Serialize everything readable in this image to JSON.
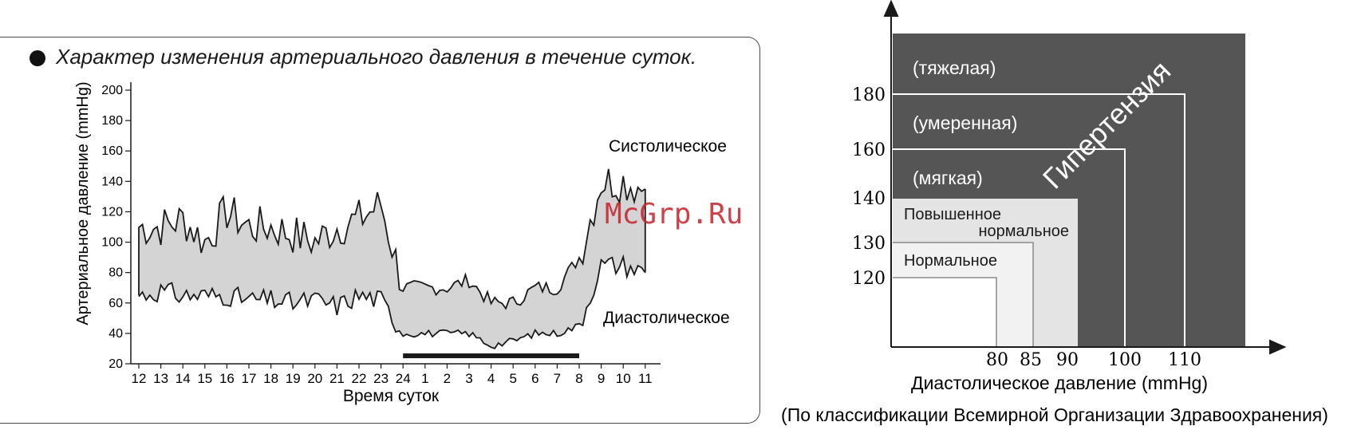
{
  "left_chart": {
    "title": "Характер изменения артериального давления в течение суток.",
    "ylabel": "Артериальное давление (mmHg)",
    "xlabel": "Время суток",
    "y_ticks": [
      20,
      40,
      60,
      80,
      100,
      120,
      140,
      160,
      180,
      200
    ],
    "x_ticks": [
      "12",
      "13",
      "14",
      "15",
      "16",
      "17",
      "18",
      "19",
      "20",
      "21",
      "22",
      "23",
      "24",
      "1",
      "2",
      "3",
      "4",
      "5",
      "6",
      "7",
      "8",
      "9",
      "10",
      "11"
    ],
    "label_systolic": "Систолическое",
    "label_diastolic": "Диастолическое",
    "watermark": "McGrp.Ru"
  },
  "right_chart": {
    "xlabel": "Диастолическое давление (mmHg)",
    "footnote": "(По классификации Всемирной Организации Здравоохранения)",
    "y_ticks": [
      "180",
      "160",
      "140",
      "130",
      "120"
    ],
    "x_ticks": [
      "80",
      "85",
      "90",
      "100",
      "110"
    ],
    "zones": {
      "severe": "(тяжелая)",
      "moderate": "(умеренная)",
      "mild": "(мягкая)",
      "high_normal_line1": "Повышенное",
      "high_normal_line2": "нормальное",
      "normal": "Нормальное",
      "hypertension": "Гипертензия"
    }
  },
  "chart_data": [
    {
      "type": "area",
      "title": "Характер изменения артериального давления в течение суток.",
      "xlabel": "Время суток",
      "ylabel": "Артериальное давление (mmHg)",
      "ylim": [
        20,
        200
      ],
      "categories": [
        "12",
        "13",
        "14",
        "15",
        "16",
        "17",
        "18",
        "19",
        "20",
        "21",
        "22",
        "23",
        "24",
        "1",
        "2",
        "3",
        "4",
        "5",
        "6",
        "7",
        "8",
        "9",
        "10",
        "11"
      ],
      "series": [
        {
          "name": "Систолическое",
          "values": [
            110,
            110,
            115,
            100,
            120,
            110,
            110,
            105,
            100,
            110,
            115,
            125,
            70,
            70,
            70,
            75,
            60,
            60,
            70,
            70,
            90,
            140,
            140,
            135
          ]
        },
        {
          "name": "Диастолическое",
          "values": [
            65,
            68,
            65,
            65,
            65,
            62,
            62,
            60,
            62,
            58,
            65,
            62,
            40,
            40,
            40,
            40,
            32,
            35,
            40,
            40,
            45,
            85,
            85,
            80
          ]
        }
      ],
      "colors": {
        "band": "#d4d4d4",
        "line": "#1a1a1a",
        "sleep_bar": "#1a1a1a"
      }
    },
    {
      "type": "table",
      "xlabel": "Диастолическое давление (mmHg)",
      "y_ticks": [
        120,
        130,
        140,
        160,
        180
      ],
      "x_ticks": [
        80,
        85,
        90,
        100,
        110
      ],
      "zones": [
        {
          "name": "Нормальное",
          "systolic_max": 130,
          "diastolic_max": 85
        },
        {
          "name": "Повышенное нормальное",
          "systolic_max": 140,
          "diastolic_max": 90
        },
        {
          "name": "(мягкая)",
          "systolic_max": 160,
          "diastolic_max": 100
        },
        {
          "name": "(умеренная)",
          "systolic_max": 180,
          "diastolic_max": 110
        },
        {
          "name": "(тяжелая)",
          "systolic_min": 180,
          "diastolic_min": 110
        }
      ],
      "colors": {
        "hypertension": "#555555",
        "high_normal": "#e4e4e4",
        "normal": "#f2f2f2",
        "optimal": "#ffffff"
      }
    }
  ]
}
